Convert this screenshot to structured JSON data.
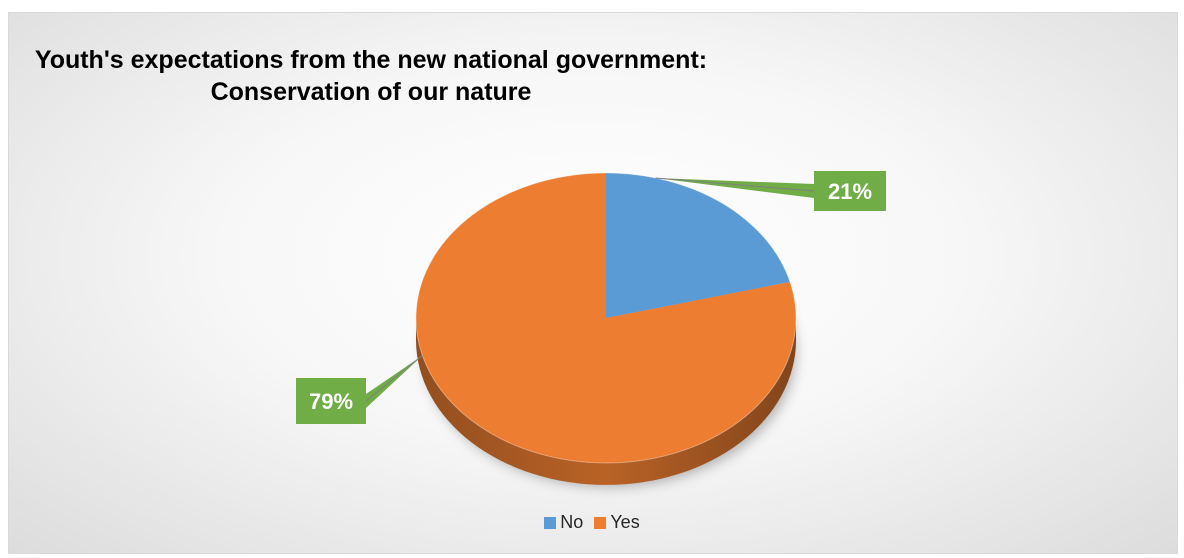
{
  "chart_data": {
    "type": "pie",
    "title_lines": [
      "Youth's expectations from the new national government:",
      "Conservation of our nature"
    ],
    "categories": [
      "No",
      "Yes"
    ],
    "values": [
      21,
      79
    ],
    "data_labels": [
      "21%",
      "79%"
    ],
    "colors": [
      "#5B9BD5",
      "#ED7D31"
    ],
    "label_color": "#70AD47",
    "legend_position": "bottom"
  }
}
